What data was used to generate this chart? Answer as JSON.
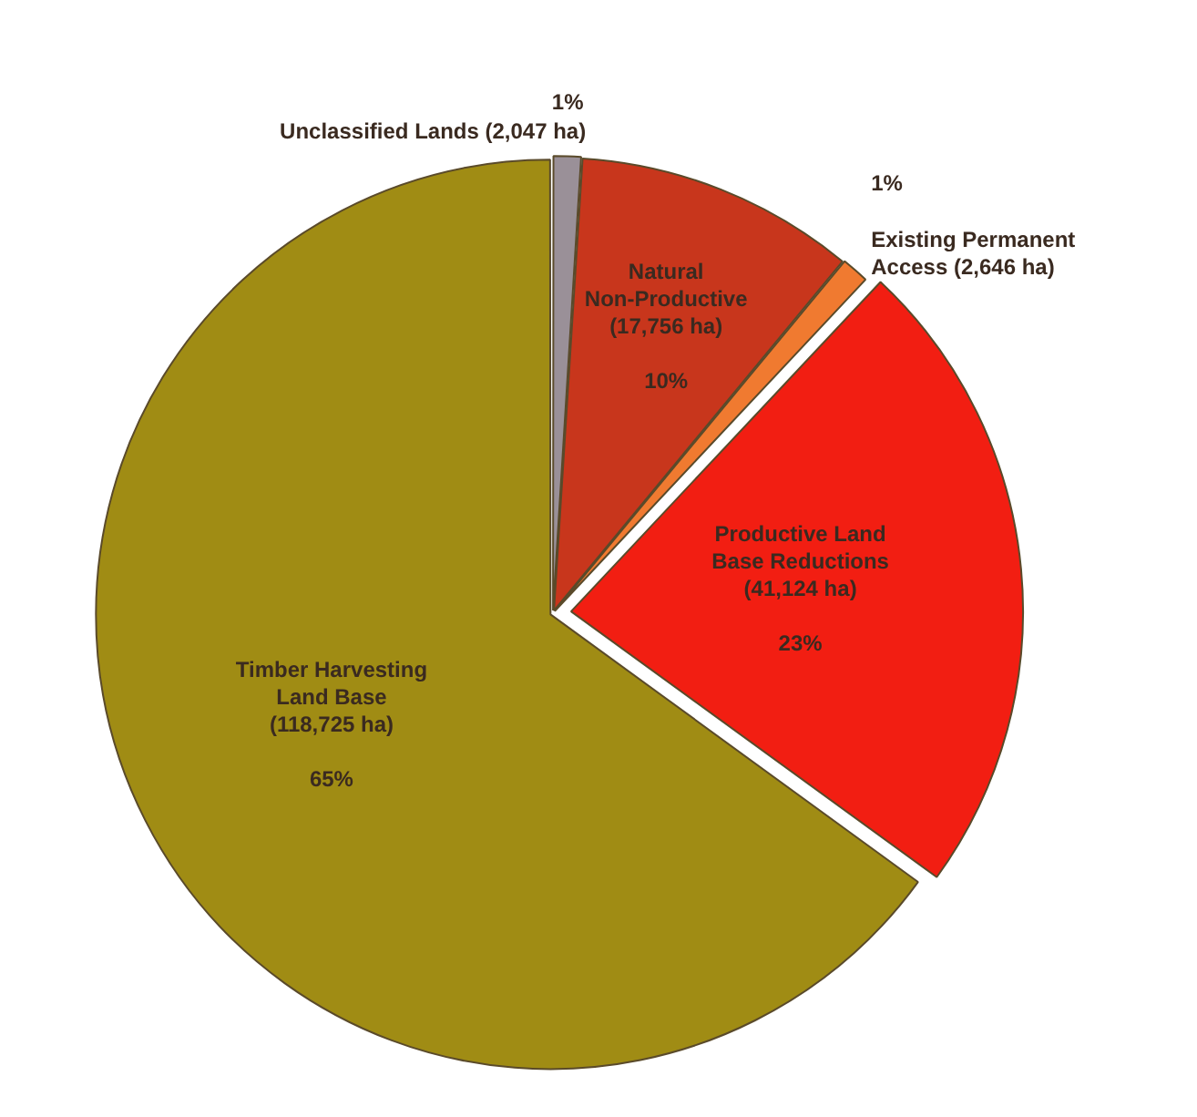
{
  "chart_data": {
    "type": "pie",
    "categories": [
      "Unclassified Lands (2,047 ha)",
      "Natural Non-Productive (17,756 ha)",
      "Existing Permanent Access (2,646 ha)",
      "Productive Land Base Reductions (41,124 ha)",
      "Timber Harvesting Land Base (118,725 ha)"
    ],
    "values": [
      1,
      10,
      1,
      23,
      65
    ],
    "value_labels": [
      "1%",
      "10%",
      "1%",
      "23%",
      "65%"
    ],
    "colors": [
      "#9a9098",
      "#c8361c",
      "#f07a30",
      "#f21e12",
      "#a08c14"
    ],
    "legend": false
  }
}
